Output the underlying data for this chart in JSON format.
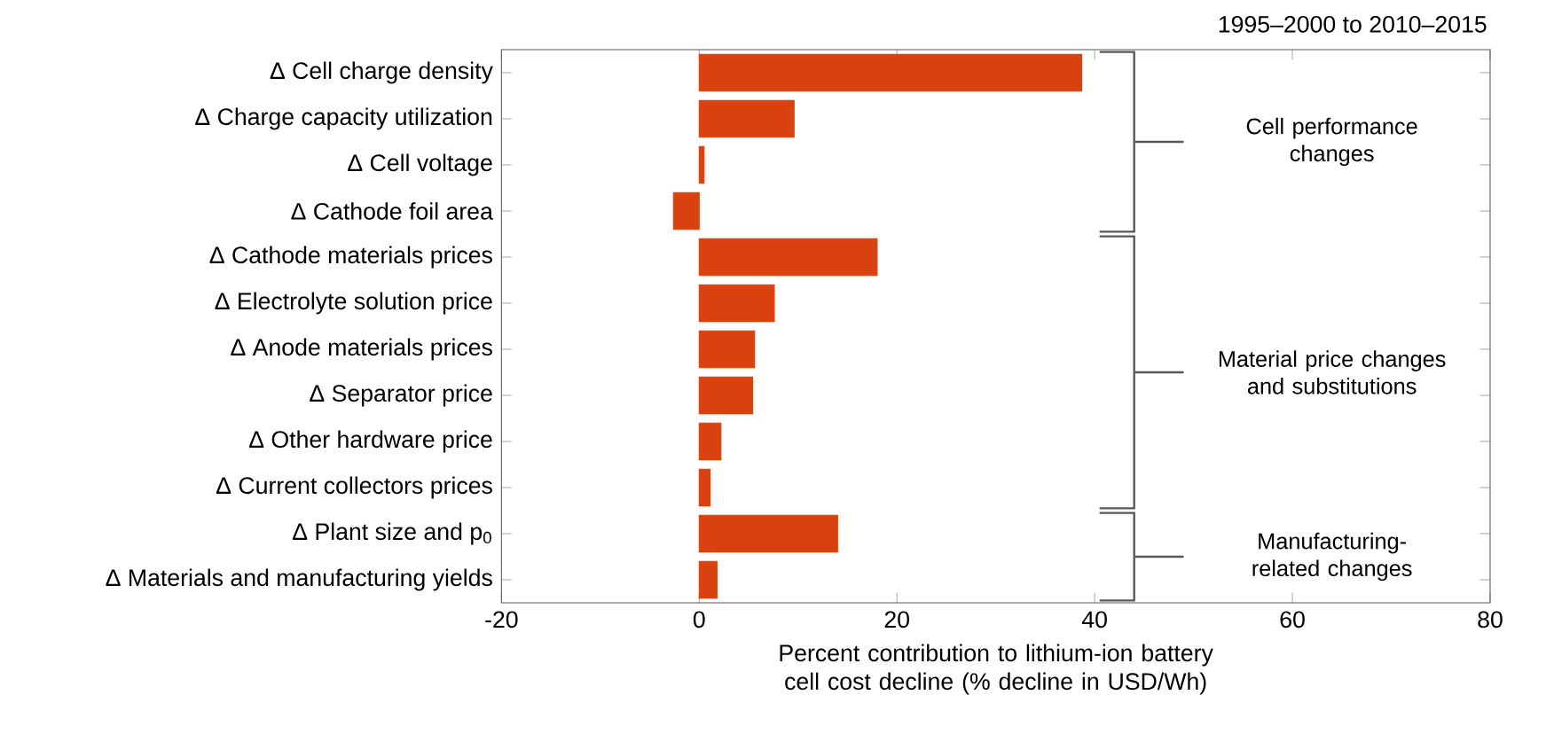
{
  "chart_data": {
    "type": "bar",
    "orientation": "horizontal",
    "title": "1995–2000 to 2010–2015",
    "xlabel": "Percent contribution to lithium-ion battery cell cost decline (% decline in USD/Wh)",
    "categories": [
      "Δ Cell charge density",
      "Δ Charge capacity utilization",
      "Δ Cell voltage",
      "Δ Cathode foil area",
      "Δ Cathode materials prices",
      "Δ Electrolyte solution price",
      "Δ Anode materials prices",
      "Δ Separator price",
      "Δ Other hardware price",
      "Δ Current collectors prices",
      "Δ Plant size and p$_{0}$",
      "Δ Materials and manufacturing yields"
    ],
    "values": [
      38.7,
      9.6,
      0.5,
      -2.6,
      18,
      7.6,
      5.6,
      5.4,
      2.2,
      1.1,
      14,
      1.8
    ],
    "color": "#d9420e",
    "xlim": [
      -20,
      80
    ],
    "xticks": [
      -20,
      0,
      20,
      40,
      60,
      80
    ],
    "annotations": [
      "Cell performance changes",
      "Material price changes and substitutions",
      "Manufacturing-related changes"
    ],
    "grid": false
  }
}
